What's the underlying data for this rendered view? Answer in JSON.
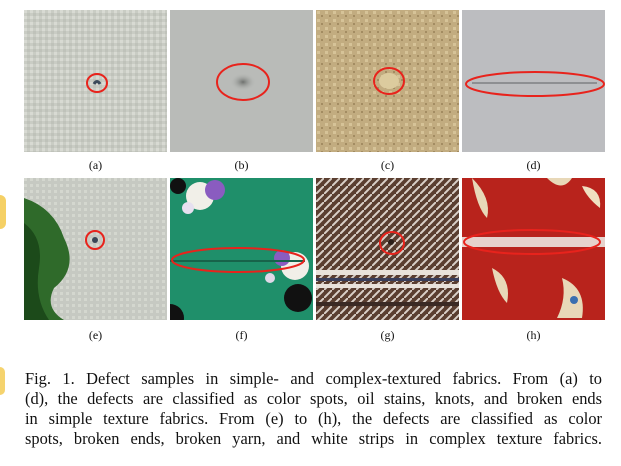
{
  "figure": {
    "panels": [
      {
        "label": "(a)"
      },
      {
        "label": "(b)"
      },
      {
        "label": "(c)"
      },
      {
        "label": "(d)"
      },
      {
        "label": "(e)"
      },
      {
        "label": "(f)"
      },
      {
        "label": "(g)"
      },
      {
        "label": "(h)"
      }
    ],
    "caption_lines": [
      "Fig. 1.  Defect samples in simple- and complex-textured fabrics. From (a) to",
      "(d), the defects are classified as color spots, oil stains, knots, and broken ends",
      "in simple texture fabrics. From (e) to (h), the defects are classified as color",
      "spots, broken ends, broken yarn, and white strips in complex texture fabrics."
    ],
    "colors": {
      "highlight_circle": "#e8231c",
      "fabric_a": "#c9ccc4",
      "fabric_b": "#b9bbb8",
      "fabric_c": "#c7b287",
      "fabric_d": "#bcbdc0",
      "fabric_e": "#c6c9c2",
      "fabric_f": "#1f8f6a",
      "fabric_g": "#6a4a3a",
      "fabric_h": "#b8231c"
    }
  }
}
